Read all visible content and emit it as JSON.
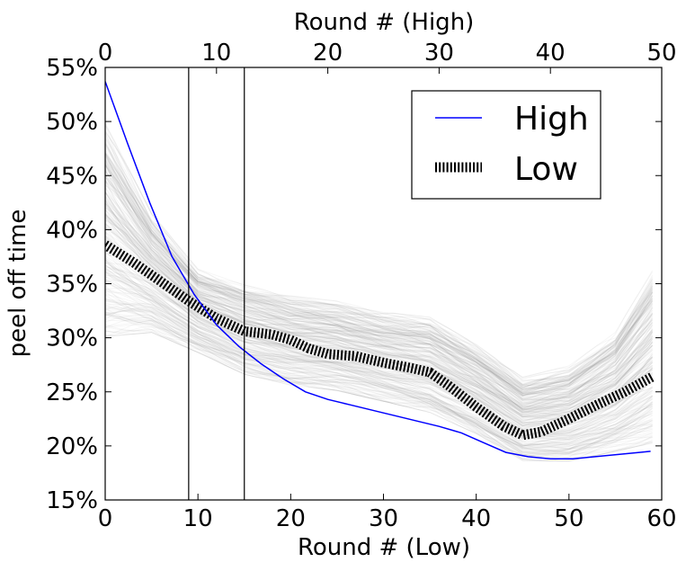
{
  "chart_data": {
    "type": "line",
    "title": "",
    "xlabel": "Round # (Low)",
    "x2label": "Round # (High)",
    "ylabel": "peel off time",
    "xlim": [
      0,
      60
    ],
    "x2lim": [
      0,
      50
    ],
    "ylim": [
      0.15,
      0.55
    ],
    "x_ticks": [
      "0",
      "10",
      "20",
      "30",
      "40",
      "50",
      "60"
    ],
    "x2_ticks": [
      "0",
      "10",
      "20",
      "30",
      "40",
      "50"
    ],
    "y_ticks": [
      "15%",
      "20%",
      "25%",
      "30%",
      "35%",
      "40%",
      "45%",
      "50%",
      "55%"
    ],
    "vertical_lines_x_low": [
      9,
      15
    ],
    "legend_position": "top-right",
    "series": [
      {
        "name": "High",
        "axis": "top",
        "color": "#0000ff",
        "style": "solid",
        "x": [
          0,
          2,
          4,
          6,
          8,
          10,
          12,
          14,
          16,
          18,
          20,
          22,
          24,
          26,
          28,
          30,
          32,
          34,
          36,
          38,
          40,
          42,
          44,
          46,
          48,
          49
        ],
        "y": [
          0.537,
          0.48,
          0.425,
          0.375,
          0.34,
          0.312,
          0.292,
          0.276,
          0.262,
          0.25,
          0.243,
          0.238,
          0.233,
          0.228,
          0.223,
          0.218,
          0.212,
          0.203,
          0.194,
          0.19,
          0.188,
          0.188,
          0.19,
          0.192,
          0.194,
          0.195
        ]
      },
      {
        "name": "Low",
        "axis": "bottom",
        "color": "#000000",
        "style": "hatched",
        "x": [
          0,
          3,
          6,
          9,
          12,
          15,
          18,
          20,
          22,
          24,
          27,
          30,
          33,
          35,
          37,
          40,
          43,
          45,
          47,
          50,
          53,
          56,
          59
        ],
        "y": [
          0.386,
          0.37,
          0.352,
          0.334,
          0.318,
          0.306,
          0.303,
          0.298,
          0.29,
          0.285,
          0.283,
          0.277,
          0.272,
          0.268,
          0.256,
          0.236,
          0.218,
          0.21,
          0.213,
          0.225,
          0.238,
          0.25,
          0.264
        ]
      }
    ],
    "background_band": {
      "color": "#808080",
      "x": [
        0,
        5,
        10,
        15,
        20,
        25,
        30,
        35,
        40,
        45,
        50,
        55,
        59
      ],
      "lower": [
        0.31,
        0.31,
        0.29,
        0.27,
        0.26,
        0.255,
        0.245,
        0.235,
        0.215,
        0.19,
        0.19,
        0.2,
        0.21
      ],
      "upper": [
        0.49,
        0.41,
        0.36,
        0.345,
        0.335,
        0.33,
        0.32,
        0.315,
        0.29,
        0.26,
        0.27,
        0.3,
        0.355
      ]
    }
  }
}
